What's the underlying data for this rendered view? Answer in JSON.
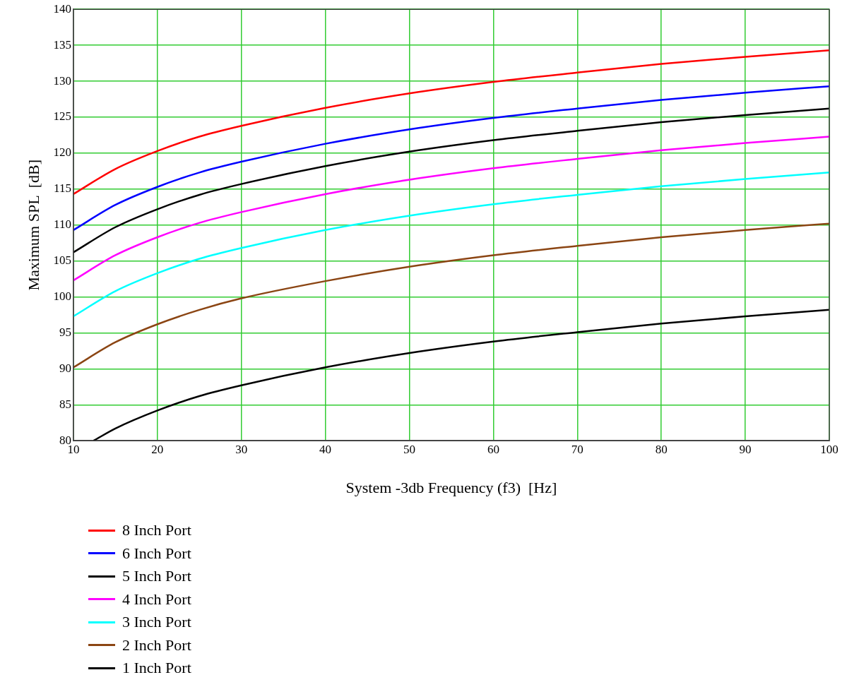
{
  "chart_data": {
    "type": "line",
    "xlabel": "System -3db Frequency (f3)  [Hz]",
    "ylabel": "Maximum SPL  [dB]",
    "xlim": [
      10,
      100
    ],
    "xticks": [
      10,
      20,
      30,
      40,
      50,
      60,
      70,
      80,
      90,
      100
    ],
    "ylim": [
      80,
      140
    ],
    "yticks": [
      80,
      85,
      90,
      95,
      100,
      105,
      110,
      115,
      120,
      125,
      130,
      135,
      140
    ],
    "grid": true,
    "legend": "bottom left",
    "marker": "none",
    "line_style": "solid",
    "series": [
      {
        "name": "8 Inch Port",
        "color": "#ff0000",
        "x": [
          10,
          15,
          20,
          25,
          30,
          40,
          50,
          60,
          70,
          80,
          90,
          100
        ],
        "values": [
          114.3,
          117.8,
          120.3,
          122.3,
          123.8,
          126.3,
          128.3,
          129.9,
          131.2,
          132.4,
          133.4,
          134.3
        ]
      },
      {
        "name": "6 Inch Port",
        "color": "#0000ff",
        "x": [
          10,
          15,
          20,
          25,
          30,
          40,
          50,
          60,
          70,
          80,
          90,
          100
        ],
        "values": [
          109.3,
          112.8,
          115.3,
          117.3,
          118.8,
          121.3,
          123.3,
          124.9,
          126.2,
          127.4,
          128.4,
          129.3
        ]
      },
      {
        "name": "5 Inch Port",
        "color": "#000000",
        "x": [
          10,
          15,
          20,
          25,
          30,
          40,
          50,
          60,
          70,
          80,
          90,
          100
        ],
        "values": [
          106.2,
          109.7,
          112.2,
          114.2,
          115.7,
          118.2,
          120.2,
          121.8,
          123.1,
          124.3,
          125.3,
          126.2
        ]
      },
      {
        "name": "4 Inch Port",
        "color": "#ff00ff",
        "x": [
          10,
          15,
          20,
          25,
          30,
          40,
          50,
          60,
          70,
          80,
          90,
          100
        ],
        "values": [
          102.3,
          105.8,
          108.3,
          110.3,
          111.8,
          114.3,
          116.3,
          117.9,
          119.2,
          120.4,
          121.4,
          122.3
        ]
      },
      {
        "name": "3 Inch Port",
        "color": "#00ffff",
        "x": [
          10,
          15,
          20,
          25,
          30,
          40,
          50,
          60,
          70,
          80,
          90,
          100
        ],
        "values": [
          97.3,
          100.8,
          103.3,
          105.3,
          106.8,
          109.3,
          111.3,
          112.9,
          114.2,
          115.4,
          116.4,
          117.3
        ]
      },
      {
        "name": "2 Inch Port",
        "color": "#8b4513",
        "x": [
          10,
          15,
          20,
          25,
          30,
          40,
          50,
          60,
          70,
          80,
          90,
          100
        ],
        "values": [
          90.2,
          93.7,
          96.2,
          98.2,
          99.8,
          102.2,
          104.2,
          105.8,
          107.1,
          108.3,
          109.3,
          110.2
        ]
      },
      {
        "name": "1 Inch Port",
        "color": "#000000",
        "x": [
          12.4,
          15,
          20,
          25,
          30,
          40,
          50,
          60,
          70,
          80,
          90,
          100
        ],
        "values": [
          80.0,
          81.7,
          84.2,
          86.2,
          87.7,
          90.2,
          92.2,
          93.8,
          95.1,
          96.3,
          97.3,
          98.2
        ]
      }
    ]
  }
}
